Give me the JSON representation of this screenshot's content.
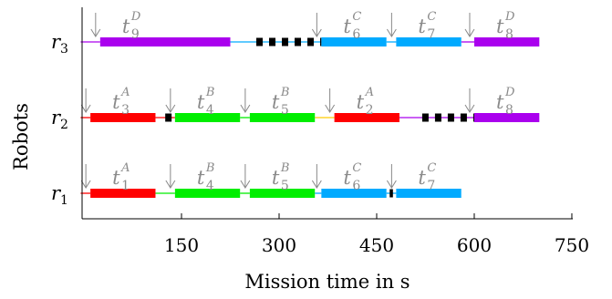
{
  "chart_data": {
    "type": "gantt",
    "xlabel": "Mission time in s",
    "ylabel": "Robots",
    "xlim": [
      -5,
      750
    ],
    "xticks": [
      150,
      300,
      450,
      600,
      750
    ],
    "robots": [
      {
        "base": "r",
        "sub": "1",
        "label": "r1",
        "tasks": [
          {
            "sym": "t",
            "sub": "1",
            "sup": "A",
            "label": "t1^A",
            "start": 10,
            "end": 110,
            "color": "#ff0000"
          },
          {
            "sym": "t",
            "sub": "4",
            "sup": "B",
            "label": "t4^B",
            "start": 140,
            "end": 240,
            "color": "#00ee00"
          },
          {
            "sym": "t",
            "sub": "5",
            "sup": "B",
            "label": "t5^B",
            "start": 255,
            "end": 355,
            "color": "#00ee00"
          },
          {
            "sym": "t",
            "sub": "6",
            "sup": "C",
            "label": "t6^C",
            "start": 365,
            "end": 465,
            "color": "#00aaff"
          },
          {
            "sym": "t",
            "sub": "7",
            "sup": "C",
            "label": "t7^C",
            "start": 480,
            "end": 580,
            "color": "#00aaff"
          }
        ],
        "transitions": [
          {
            "start": -5,
            "end": 10,
            "color": "#ff0000"
          },
          {
            "start": 110,
            "end": 140,
            "color": "#00ee00"
          },
          {
            "start": 240,
            "end": 255,
            "color": "#00ee00"
          },
          {
            "start": 355,
            "end": 365,
            "color": "#00aaff"
          },
          {
            "start": 465,
            "end": 480,
            "color": "#00aaff"
          }
        ],
        "waits": [
          {
            "start": 470,
            "end": 475
          }
        ]
      },
      {
        "base": "r",
        "sub": "2",
        "label": "r2",
        "tasks": [
          {
            "sym": "t",
            "sub": "3",
            "sup": "A",
            "label": "t3^A",
            "start": 10,
            "end": 110,
            "color": "#ff0000"
          },
          {
            "sym": "t",
            "sub": "4",
            "sup": "B",
            "label": "t4^B",
            "start": 140,
            "end": 240,
            "color": "#00ee00"
          },
          {
            "sym": "t",
            "sub": "5",
            "sup": "B",
            "label": "t5^B",
            "start": 255,
            "end": 355,
            "color": "#00ee00"
          },
          {
            "sym": "t",
            "sub": "2",
            "sup": "A",
            "label": "t2^A",
            "start": 385,
            "end": 485,
            "color": "#ff0000"
          },
          {
            "sym": "t",
            "sub": "8",
            "sup": "D",
            "label": "t8^D",
            "start": 600,
            "end": 700,
            "color": "#aa00ee"
          }
        ],
        "transitions": [
          {
            "start": -5,
            "end": 10,
            "color": "#ff0000"
          },
          {
            "start": 110,
            "end": 140,
            "color": "#ff0000"
          },
          {
            "start": 240,
            "end": 255,
            "color": "#00ee00"
          },
          {
            "start": 355,
            "end": 385,
            "color": "#ffcc00"
          },
          {
            "start": 485,
            "end": 600,
            "color": "#aa00ee"
          }
        ],
        "waits": [
          {
            "start": 125,
            "end": 135
          },
          {
            "start": 520,
            "end": 600
          }
        ]
      },
      {
        "base": "r",
        "sub": "3",
        "label": "r3",
        "tasks": [
          {
            "sym": "t",
            "sub": "9",
            "sup": "D",
            "label": "t9^D",
            "start": 25,
            "end": 225,
            "color": "#aa00ee"
          },
          {
            "sym": "t",
            "sub": "6",
            "sup": "C",
            "label": "t6^C",
            "start": 365,
            "end": 465,
            "color": "#00aaff"
          },
          {
            "sym": "t",
            "sub": "7",
            "sup": "C",
            "label": "t7^C",
            "start": 480,
            "end": 580,
            "color": "#00aaff"
          },
          {
            "sym": "t",
            "sub": "8",
            "sup": "D",
            "label": "t8^D",
            "start": 600,
            "end": 700,
            "color": "#aa00ee"
          }
        ],
        "transitions": [
          {
            "start": -5,
            "end": 25,
            "color": "#aa00ee"
          },
          {
            "start": 225,
            "end": 365,
            "color": "#00aaff"
          },
          {
            "start": 465,
            "end": 480,
            "color": "#00aaff"
          },
          {
            "start": 580,
            "end": 600,
            "color": "#aa00ee"
          }
        ],
        "waits": [
          {
            "start": 265,
            "end": 365
          }
        ]
      }
    ]
  }
}
